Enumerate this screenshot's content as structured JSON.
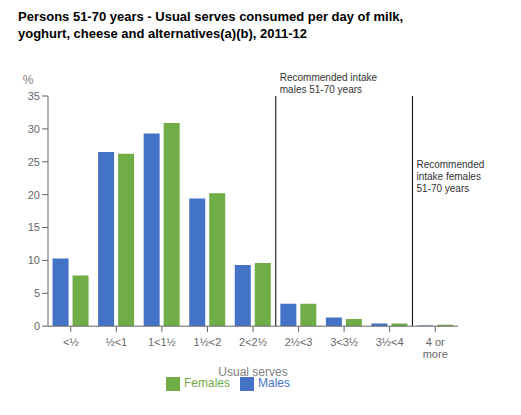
{
  "chart_data": {
    "type": "bar",
    "title": "Persons 51-70 years - Usual serves consumed per day of milk,\nyoghurt, cheese and alternatives(a)(b), 2011-12",
    "categories": [
      "<½",
      "½<1",
      "1<1½",
      "1½<2",
      "2<2½",
      "2½<3",
      "3<3½",
      "3½<4",
      "4 or\nmore"
    ],
    "series": [
      {
        "name": "Males",
        "color": "#4472C4",
        "values": [
          10.3,
          26.5,
          29.3,
          19.4,
          9.3,
          3.4,
          1.3,
          0.4,
          0.1
        ]
      },
      {
        "name": "Females",
        "color": "#70AD47",
        "values": [
          7.7,
          26.2,
          30.9,
          20.2,
          9.6,
          3.4,
          1.1,
          0.4,
          0.2
        ]
      }
    ],
    "xlabel": "Usual serves",
    "ylabel": "%",
    "ylim": [
      0,
      35
    ],
    "yticks": [
      0,
      5,
      10,
      15,
      20,
      25,
      30,
      35
    ],
    "annotations": [
      {
        "text": "Recommended intake\nmales 51-70 years",
        "x": 4.5,
        "y": 35
      },
      {
        "text": "Recommended\nintake females\n51-70 years",
        "x": 7.5,
        "y": 20
      }
    ],
    "grid": false,
    "legend": "bottom"
  }
}
